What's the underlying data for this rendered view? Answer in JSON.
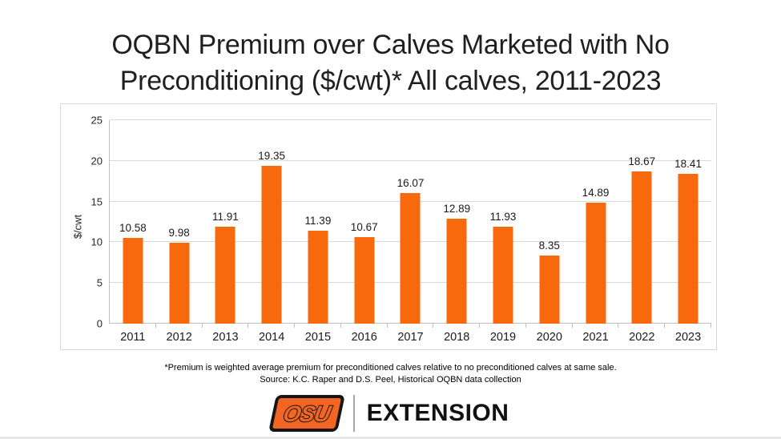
{
  "slide": {
    "title_line1": "OQBN Premium over Calves Marketed with No",
    "title_line2": "Preconditioning ($/cwt)* All calves, 2011-2023",
    "footnote_line1": "*Premium is weighted average premium for preconditioned calves relative to no preconditioned calves at same sale.",
    "footnote_line2": "Source: K.C. Raper and D.S. Peel, Historical OQBN data collection"
  },
  "logo": {
    "mark_text": "OSU",
    "wordmark": "EXTENSION",
    "mark_orange": "#f26522",
    "mark_outline": "#161616"
  },
  "chart_data": {
    "type": "bar",
    "title": "OQBN Premium over Calves Marketed with No Preconditioning ($/cwt)* All calves, 2011-2023",
    "categories": [
      "2011",
      "2012",
      "2013",
      "2014",
      "2015",
      "2016",
      "2017",
      "2018",
      "2019",
      "2020",
      "2021",
      "2022",
      "2023"
    ],
    "values": [
      10.58,
      9.98,
      11.91,
      19.35,
      11.39,
      10.67,
      16.07,
      12.89,
      11.93,
      8.35,
      14.89,
      18.67,
      18.41
    ],
    "xlabel": "",
    "ylabel": "$/cwt",
    "ylim": [
      0,
      25
    ],
    "yticks": [
      0,
      5,
      10,
      15,
      20,
      25
    ],
    "bar_color": "#f7690c",
    "grid": true,
    "data_labels": true,
    "legend": "none"
  }
}
